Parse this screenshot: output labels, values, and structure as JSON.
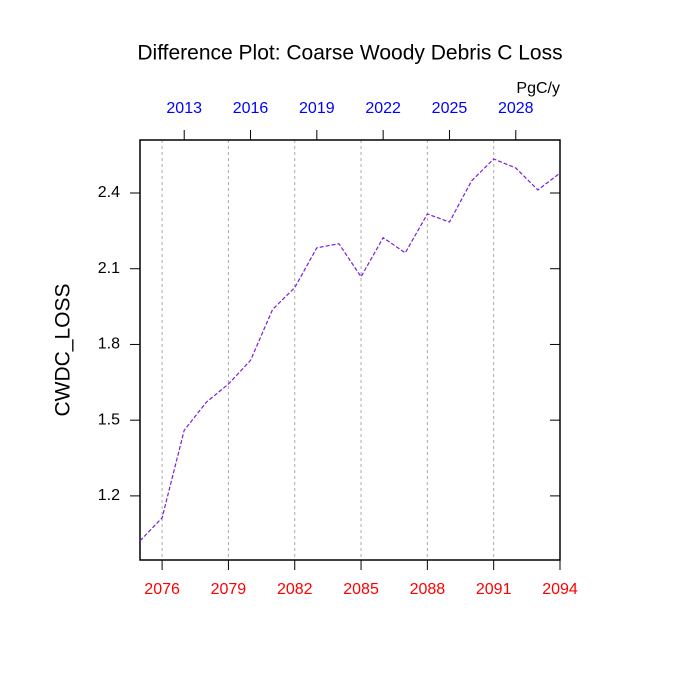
{
  "chart_data": {
    "type": "line",
    "title": "Difference Plot: Coarse Woody Debris C Loss",
    "units": "PgC/y",
    "y_label": "CWDC_LOSS",
    "x": [
      2075,
      2076,
      2077,
      2078,
      2079,
      2080,
      2081,
      2082,
      2083,
      2084,
      2085,
      2086,
      2087,
      2088,
      2089,
      2090,
      2091,
      2092,
      2093,
      2094
    ],
    "series": [
      {
        "color": "#7a1fd8",
        "values": [
          1.022,
          1.113,
          1.46,
          1.571,
          1.643,
          1.737,
          1.939,
          2.025,
          2.183,
          2.199,
          2.068,
          2.223,
          2.163,
          2.317,
          2.285,
          2.448,
          2.535,
          2.499,
          2.412,
          2.479
        ]
      }
    ],
    "xlim": [
      2075,
      2094
    ],
    "xticks": [
      2076,
      2079,
      2082,
      2085,
      2088,
      2091,
      2094
    ],
    "xtick_color": "#ff0000",
    "x2lim": [
      2011,
      2030
    ],
    "x2ticks": [
      2013,
      2016,
      2019,
      2022,
      2025,
      2028
    ],
    "x2tick_color": "#0000ff",
    "ylim": [
      0.946,
      2.61
    ],
    "yticks": [
      1.2,
      1.5,
      1.8,
      2.1,
      2.4
    ],
    "grid": true
  }
}
